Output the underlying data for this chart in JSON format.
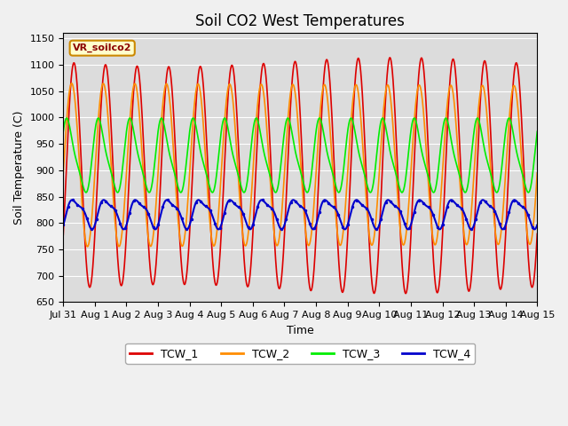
{
  "title": "Soil CO2 West Temperatures",
  "xlabel": "Time",
  "ylabel": "Soil Temperature (C)",
  "ylim": [
    650,
    1160
  ],
  "yticks": [
    650,
    700,
    750,
    800,
    850,
    900,
    950,
    1000,
    1050,
    1100,
    1150
  ],
  "annotation": "VR_soilco2",
  "background_color": "#dcdcdc",
  "fig_facecolor": "#f0f0f0",
  "x_start_days": 0,
  "x_end_days": 15,
  "n_points": 3000,
  "xtick_days": [
    0,
    1,
    2,
    3,
    4,
    5,
    6,
    7,
    8,
    9,
    10,
    11,
    12,
    13,
    14,
    15
  ],
  "xtick_labels": [
    "Jul 31",
    "Aug 1",
    "Aug 2",
    "Aug 3",
    "Aug 4",
    "Aug 5",
    "Aug 6",
    "Aug 7",
    "Aug 8",
    "Aug 9",
    "Aug 10",
    "Aug 11",
    "Aug 12",
    "Aug 13",
    "Aug 14",
    "Aug 15"
  ],
  "grid_color": "#ffffff",
  "title_fontsize": 12,
  "axis_label_fontsize": 9,
  "tick_fontsize": 8,
  "legend_fontsize": 9,
  "colors": {
    "TCW_1": "#dd0000",
    "TCW_2": "#ff8c00",
    "TCW_3": "#00ee00",
    "TCW_4": "#0000cc"
  }
}
